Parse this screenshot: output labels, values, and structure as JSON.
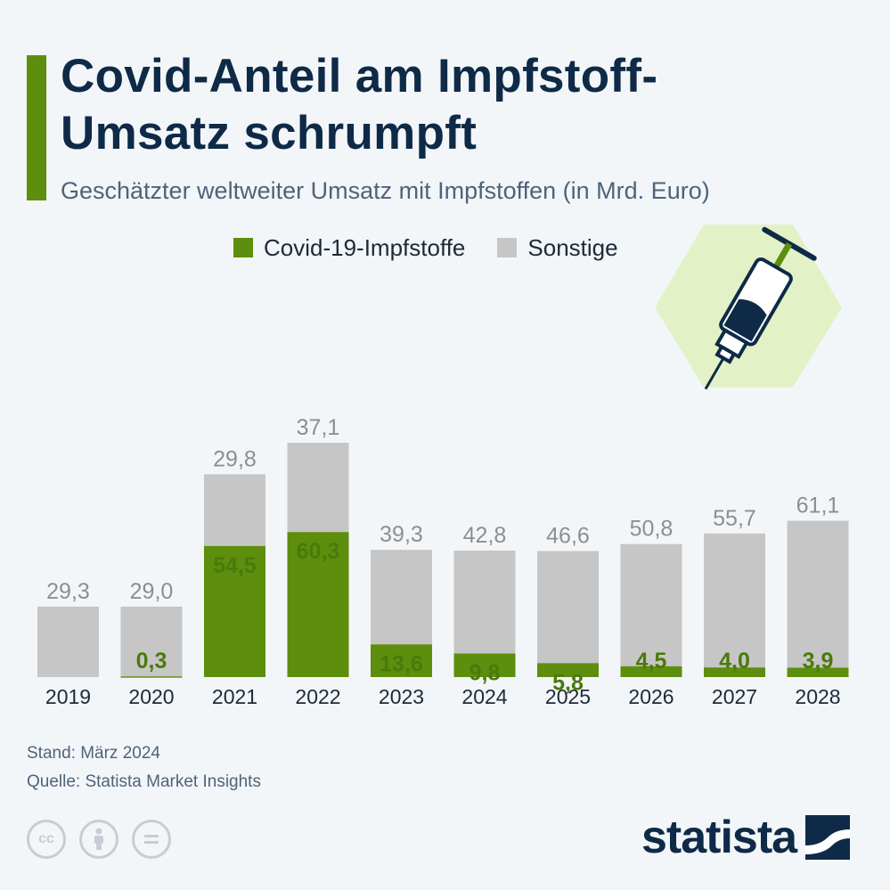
{
  "header": {
    "title": "Covid-Anteil am Impfstoff-Umsatz schrumpft",
    "subtitle": "Geschätzter weltweiter Umsatz mit Impfstoffen (in Mrd. Euro)"
  },
  "footer": {
    "stand": "Stand: März 2024",
    "quelle": "Quelle: Statista Market Insights",
    "logo": "statista"
  },
  "icons": {
    "illustration": "syringe-icon",
    "license": [
      "cc-icon",
      "attribution-icon",
      "no-derivatives-icon"
    ]
  },
  "colors": {
    "covid": "#5d8e0d",
    "other": "#c6c6c6",
    "covid_label": "#4a7a0a",
    "other_label": "#8e8e8e",
    "title": "#0e2a47"
  },
  "chart_data": {
    "type": "bar",
    "stacked": true,
    "legend_position": "top",
    "grid": false,
    "categories": [
      "2019",
      "2020",
      "2021",
      "2022",
      "2023",
      "2024",
      "2025",
      "2026",
      "2027",
      "2028"
    ],
    "series": [
      {
        "name": "Covid-19-Impfstoffe",
        "values": [
          0,
          0.3,
          54.5,
          60.3,
          13.6,
          9.8,
          5.8,
          4.5,
          4.0,
          3.9
        ],
        "labels": [
          "",
          "0,3",
          "54,5",
          "60,3",
          "13,6",
          "9,8",
          "5,8",
          "4,5",
          "4,0",
          "3,9"
        ]
      },
      {
        "name": "Sonstige",
        "values": [
          29.3,
          29.0,
          29.8,
          37.1,
          39.3,
          42.8,
          46.6,
          50.8,
          55.7,
          61.1
        ],
        "labels": [
          "29,3",
          "29,0",
          "29,8",
          "37,1",
          "39,3",
          "42,8",
          "46,6",
          "50,8",
          "55,7",
          "61,1"
        ]
      }
    ]
  }
}
